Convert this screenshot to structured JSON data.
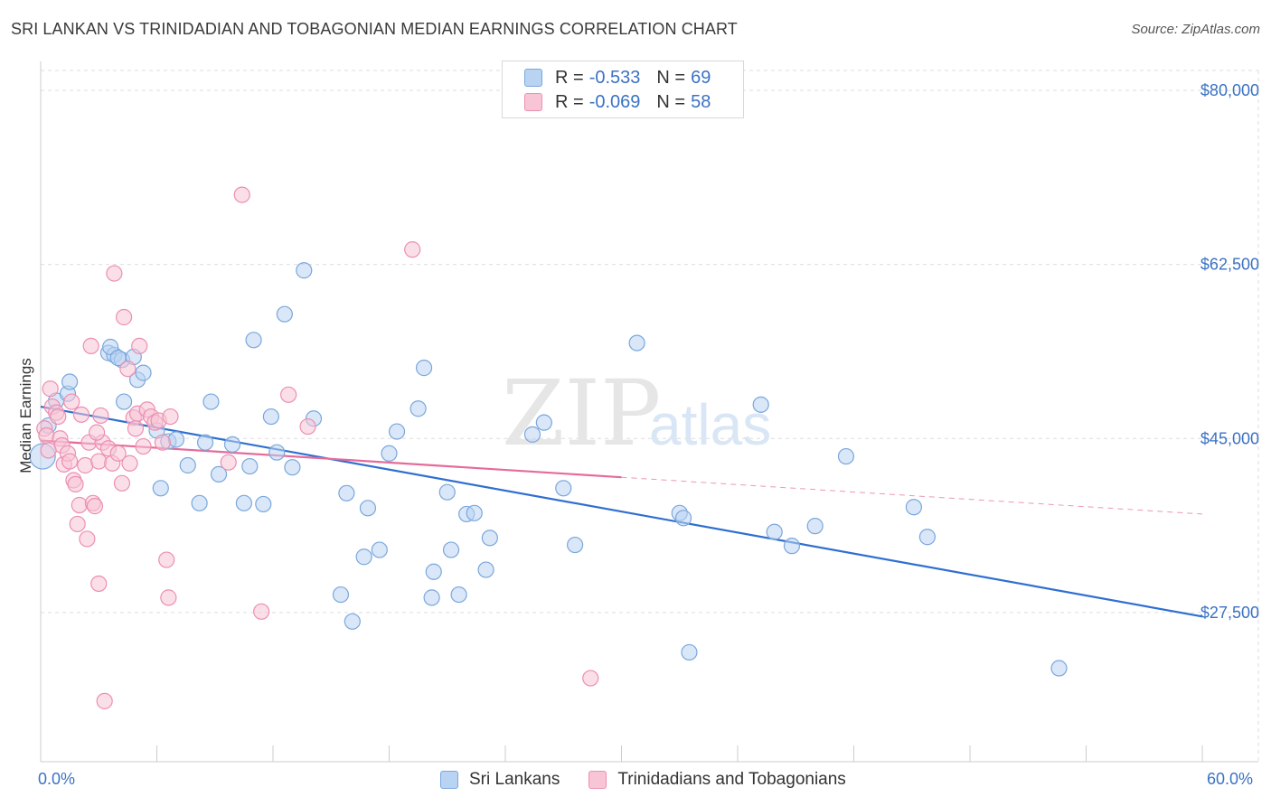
{
  "title": "SRI LANKAN VS TRINIDADIAN AND TOBAGONIAN MEDIAN EARNINGS CORRELATION CHART",
  "source": "Source: ZipAtlas.com",
  "watermark": {
    "zip": "ZIP",
    "atlas": "atlas"
  },
  "legend": {
    "row1": {
      "r_label": "R =",
      "r_value": "-0.533",
      "n_label": "N =",
      "n_value": "69"
    },
    "row2": {
      "r_label": "R =",
      "r_value": "-0.069",
      "n_label": "N =",
      "n_value": "58"
    }
  },
  "bottom_legend": {
    "series1": "Sri Lankans",
    "series2": "Trinidadians and Tobagonians"
  },
  "colors": {
    "blue_fill": "#b9d3f2",
    "blue_stroke": "#7aa7dc",
    "blue_line": "#2f6fd0",
    "pink_fill": "#f8c5d6",
    "pink_stroke": "#ec8fb1",
    "pink_line": "#e56b99",
    "tick_text": "#3b72c4",
    "grid": "#dddddd"
  },
  "chart_data": {
    "type": "scatter",
    "title": "SRI LANKAN VS TRINIDADIAN AND TOBAGONIAN MEDIAN EARNINGS CORRELATION CHART",
    "xlabel": "",
    "ylabel": "Median Earnings",
    "xlim": [
      0,
      60
    ],
    "ylim": [
      12500,
      82000
    ],
    "x_tick_labels": [
      "0.0%",
      "60.0%"
    ],
    "y_ticks": [
      27500,
      45000,
      62500,
      80000
    ],
    "y_tick_labels": [
      "$27,500",
      "$45,000",
      "$62,500",
      "$80,000"
    ],
    "grid": true,
    "legend_position": "top-center",
    "series": [
      {
        "name": "Sri Lankans",
        "r": -0.533,
        "n": 69,
        "trend": {
          "x": [
            0,
            60
          ],
          "y": [
            48200,
            27100
          ],
          "dashed_from": null
        },
        "points": [
          [
            0.1,
            43200
          ],
          [
            0.4,
            46300
          ],
          [
            0.8,
            48800
          ],
          [
            1.4,
            49500
          ],
          [
            1.5,
            50700
          ],
          [
            3.5,
            53600
          ],
          [
            3.8,
            53400
          ],
          [
            4.2,
            52900
          ],
          [
            3.6,
            54200
          ],
          [
            4.0,
            53100
          ],
          [
            4.8,
            53200
          ],
          [
            4.3,
            48700
          ],
          [
            5.0,
            50900
          ],
          [
            5.3,
            51600
          ],
          [
            6.0,
            45800
          ],
          [
            6.6,
            44700
          ],
          [
            6.2,
            40000
          ],
          [
            7.0,
            44900
          ],
          [
            7.6,
            42300
          ],
          [
            8.2,
            38500
          ],
          [
            8.5,
            44600
          ],
          [
            8.8,
            48700
          ],
          [
            9.2,
            41400
          ],
          [
            9.9,
            44400
          ],
          [
            10.5,
            38500
          ],
          [
            10.8,
            42200
          ],
          [
            11.0,
            54900
          ],
          [
            11.5,
            38400
          ],
          [
            11.9,
            47200
          ],
          [
            12.2,
            43600
          ],
          [
            12.6,
            57500
          ],
          [
            13.0,
            42100
          ],
          [
            13.6,
            61900
          ],
          [
            14.1,
            47000
          ],
          [
            15.5,
            29300
          ],
          [
            15.8,
            39500
          ],
          [
            16.1,
            26600
          ],
          [
            16.7,
            33100
          ],
          [
            16.9,
            38000
          ],
          [
            17.5,
            33800
          ],
          [
            18.0,
            43500
          ],
          [
            18.4,
            45700
          ],
          [
            19.5,
            48000
          ],
          [
            19.8,
            52100
          ],
          [
            20.2,
            29000
          ],
          [
            20.3,
            31600
          ],
          [
            21.0,
            39600
          ],
          [
            21.2,
            33800
          ],
          [
            21.6,
            29300
          ],
          [
            22.0,
            37400
          ],
          [
            22.4,
            37500
          ],
          [
            23.0,
            31800
          ],
          [
            23.2,
            35000
          ],
          [
            25.4,
            45400
          ],
          [
            26.0,
            46600
          ],
          [
            27.0,
            40000
          ],
          [
            27.6,
            34300
          ],
          [
            30.8,
            54600
          ],
          [
            33.0,
            37500
          ],
          [
            33.2,
            37000
          ],
          [
            33.5,
            23500
          ],
          [
            37.2,
            48400
          ],
          [
            37.9,
            35600
          ],
          [
            38.8,
            34200
          ],
          [
            40.0,
            36200
          ],
          [
            41.6,
            43200
          ],
          [
            45.1,
            38100
          ],
          [
            45.8,
            35100
          ],
          [
            52.6,
            21900
          ]
        ]
      },
      {
        "name": "Trinidadians and Tobagonians",
        "r": -0.069,
        "n": 58,
        "trend": {
          "x": [
            0,
            60
          ],
          "y": [
            44800,
            37400
          ],
          "dashed_from": 30
        },
        "points": [
          [
            0.2,
            46000
          ],
          [
            0.3,
            45300
          ],
          [
            0.5,
            50000
          ],
          [
            0.6,
            48200
          ],
          [
            0.8,
            47600
          ],
          [
            0.9,
            47200
          ],
          [
            1.0,
            45000
          ],
          [
            1.1,
            44300
          ],
          [
            1.2,
            42400
          ],
          [
            1.4,
            43500
          ],
          [
            1.5,
            42700
          ],
          [
            1.6,
            48700
          ],
          [
            1.7,
            40800
          ],
          [
            1.8,
            40400
          ],
          [
            1.9,
            36400
          ],
          [
            2.0,
            38300
          ],
          [
            2.1,
            47400
          ],
          [
            2.3,
            42300
          ],
          [
            2.4,
            34900
          ],
          [
            2.5,
            44600
          ],
          [
            2.6,
            54300
          ],
          [
            2.7,
            38500
          ],
          [
            2.8,
            38200
          ],
          [
            3.0,
            42700
          ],
          [
            3.1,
            47300
          ],
          [
            3.0,
            30400
          ],
          [
            3.2,
            44600
          ],
          [
            3.3,
            18600
          ],
          [
            3.5,
            44000
          ],
          [
            3.7,
            42500
          ],
          [
            3.8,
            61600
          ],
          [
            4.0,
            43500
          ],
          [
            4.2,
            40500
          ],
          [
            4.3,
            57200
          ],
          [
            4.5,
            52000
          ],
          [
            4.6,
            42500
          ],
          [
            4.8,
            47100
          ],
          [
            5.0,
            47500
          ],
          [
            5.1,
            54300
          ],
          [
            5.3,
            44200
          ],
          [
            5.5,
            47900
          ],
          [
            5.7,
            47200
          ],
          [
            5.9,
            46600
          ],
          [
            6.1,
            46800
          ],
          [
            6.3,
            44600
          ],
          [
            6.5,
            32800
          ],
          [
            6.6,
            29000
          ],
          [
            6.7,
            47200
          ],
          [
            9.7,
            42600
          ],
          [
            10.4,
            69500
          ],
          [
            11.4,
            27600
          ],
          [
            12.8,
            49400
          ],
          [
            13.8,
            46200
          ],
          [
            19.2,
            64000
          ],
          [
            28.4,
            20900
          ],
          [
            0.4,
            43800
          ],
          [
            2.9,
            45600
          ],
          [
            4.9,
            46000
          ]
        ]
      }
    ]
  }
}
